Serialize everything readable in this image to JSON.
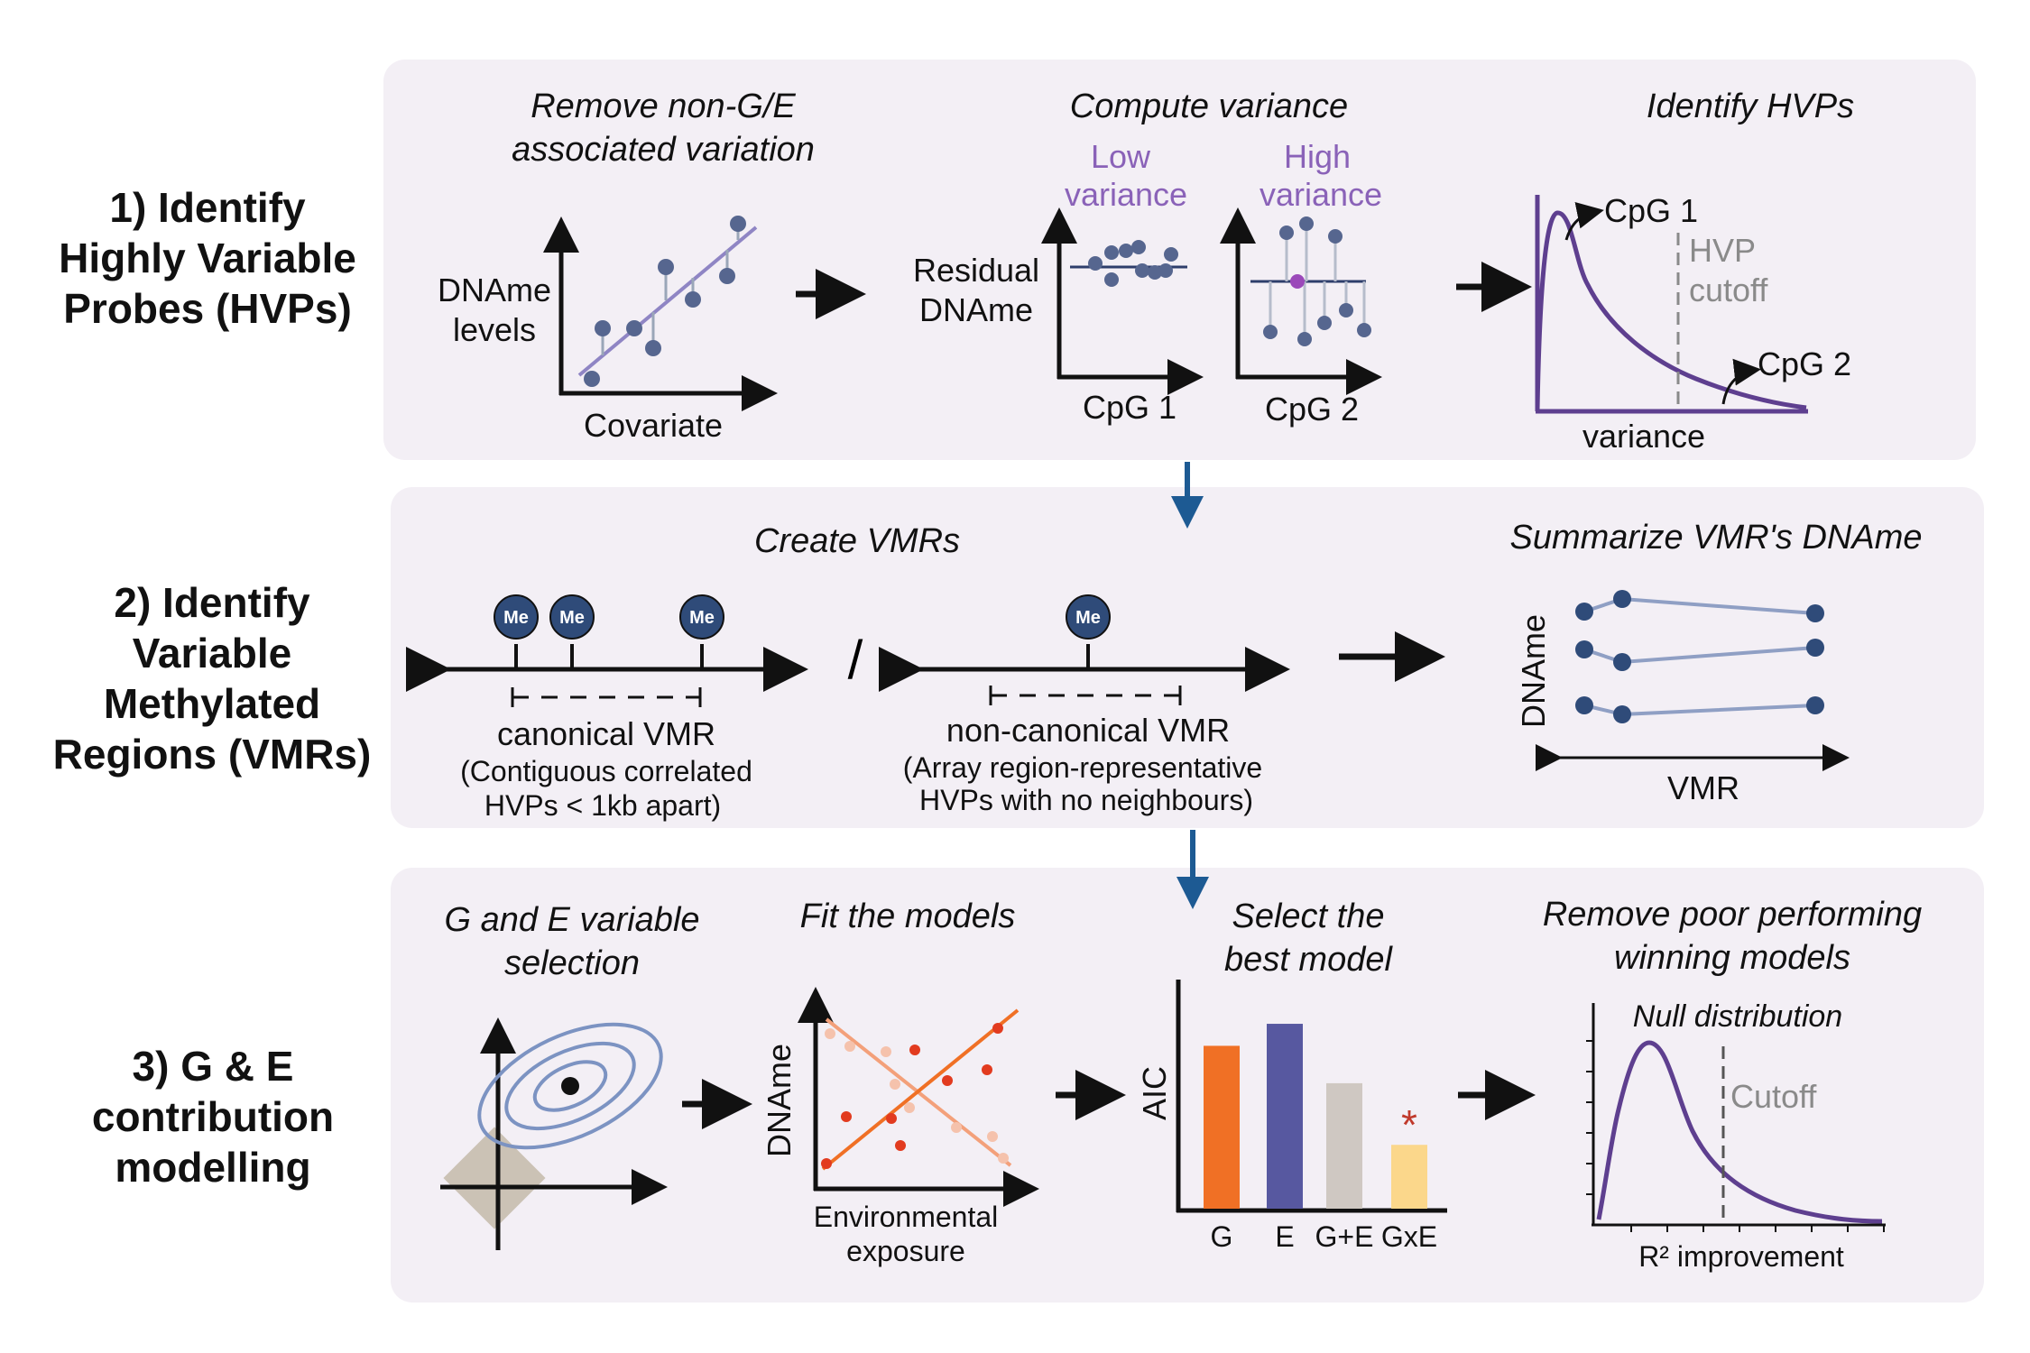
{
  "row1": {
    "step_label": [
      "1) Identify",
      "Highly Variable",
      "Probes (HVPs)"
    ],
    "remove_title": [
      "Remove non-G/E",
      "associated variation"
    ],
    "dname_levels": [
      "DNAme",
      "levels"
    ],
    "covariate": "Covariate",
    "compute_title": "Compute variance",
    "low_variance": [
      "Low",
      "variance"
    ],
    "high_variance": [
      "High",
      "variance"
    ],
    "residual_dname": [
      "Residual",
      "DNAme"
    ],
    "cpg1": "CpG 1",
    "cpg2": "CpG 2",
    "identify_title": "Identify HVPs",
    "hvp_cutoff": [
      "HVP",
      "cutoff"
    ],
    "variance_axis": "variance",
    "curve_cpg1": "CpG 1",
    "curve_cpg2": "CpG 2"
  },
  "row2": {
    "step_label": [
      "2) Identify",
      "Variable",
      "Methylated",
      "Regions (VMRs)"
    ],
    "create_title": "Create VMRs",
    "me": "Me",
    "slash": "/",
    "canonical": [
      "canonical VMR",
      "(Contiguous correlated",
      "HVPs < 1kb apart)"
    ],
    "noncanonical": [
      "non-canonical VMR",
      "(Array region-representative",
      "HVPs with no neighbours)"
    ],
    "summarize_title": "Summarize VMR's DNAme",
    "dname_axis": "DNAme",
    "vmr_axis": "VMR"
  },
  "row3": {
    "step_label": [
      "3) G & E",
      "contribution",
      "modelling"
    ],
    "ge_title": [
      "G and E variable",
      "selection"
    ],
    "fit_title": "Fit the models",
    "dname_axis": "DNAme",
    "env_label": [
      "Environmental",
      "exposure"
    ],
    "select_title": [
      "Select the",
      "best model"
    ],
    "aic_axis": "AIC",
    "bars": [
      {
        "label": "G",
        "value": 0.74,
        "color": "#f07025"
      },
      {
        "label": "E",
        "value": 0.84,
        "color": "#5758a0"
      },
      {
        "label": "G+E",
        "value": 0.57,
        "color": "#cfc8c2"
      },
      {
        "label": "GxE",
        "value": 0.29,
        "color": "#fbd78b"
      }
    ],
    "best_marker": "*",
    "remove_title": [
      "Remove poor performing",
      "winning models"
    ],
    "null_dist": "Null distribution",
    "cutoff": "Cutoff",
    "r2_label": "R² improvement"
  },
  "colors": {
    "panel": "#f3eff5",
    "purple_line": "#5e3f8f",
    "dot": "#56668f",
    "flow_arrow": "#1d5a93"
  }
}
